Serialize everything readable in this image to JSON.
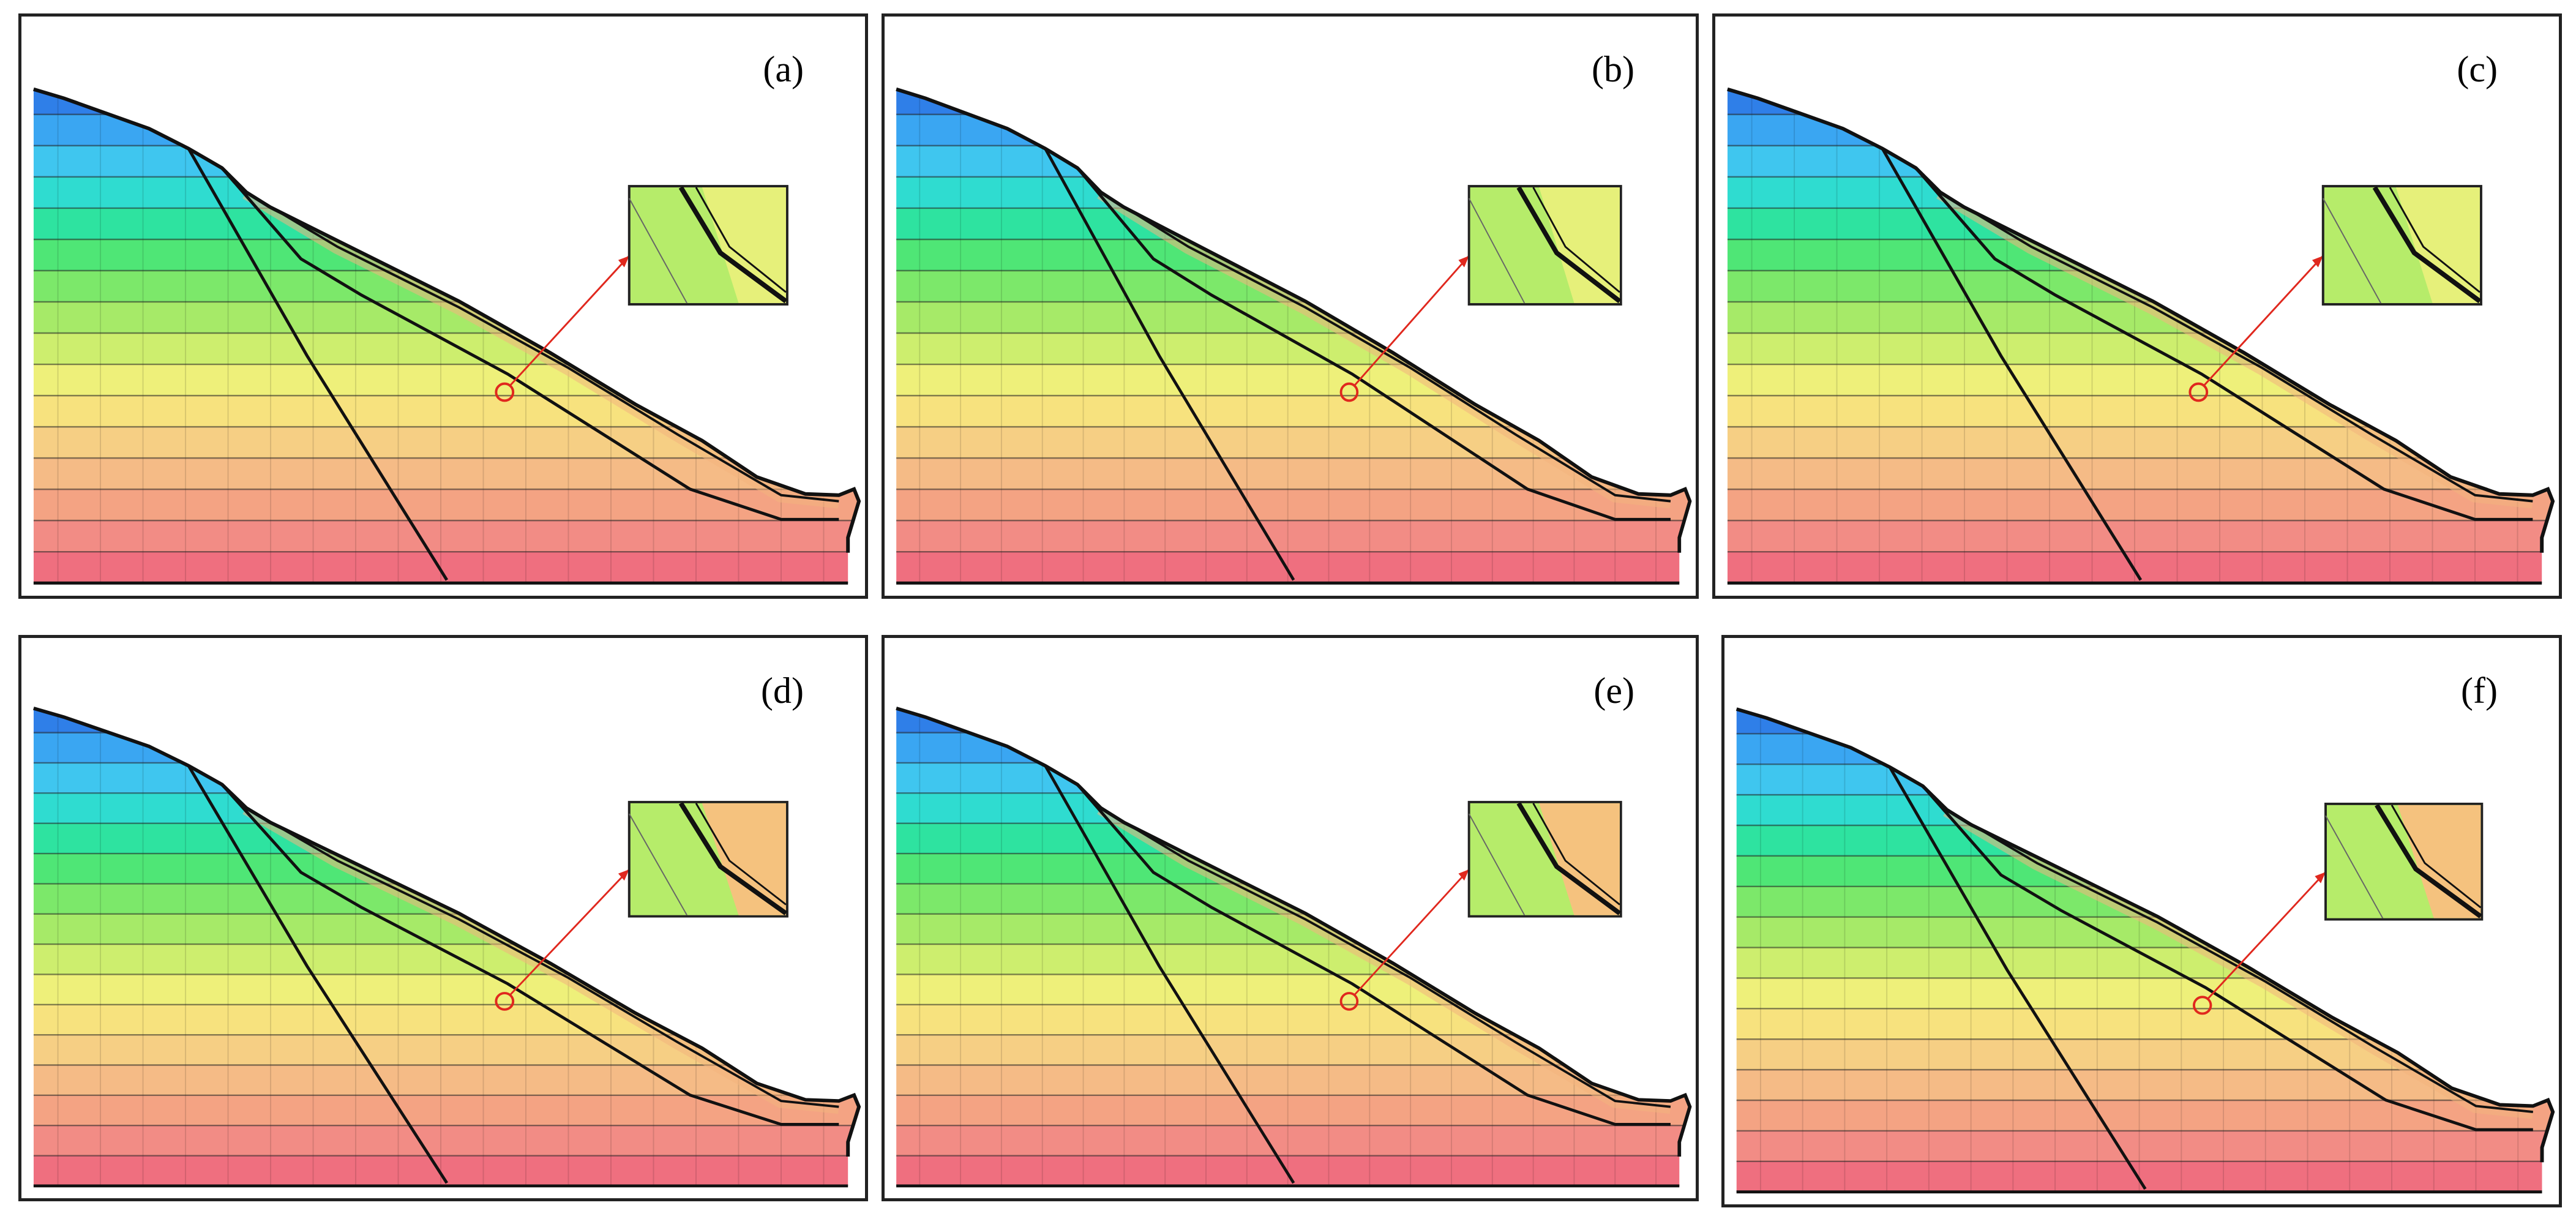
{
  "figure": {
    "panels": [
      {
        "id": "a",
        "label": "(a)"
      },
      {
        "id": "b",
        "label": "(b)"
      },
      {
        "id": "c",
        "label": "(c)"
      },
      {
        "id": "d",
        "label": "(d)"
      },
      {
        "id": "e",
        "label": "(e)"
      },
      {
        "id": "f",
        "label": "(f)"
      }
    ]
  },
  "colors": {
    "bands": [
      "#2f7fe8",
      "#3aa6f2",
      "#3fc6ef",
      "#2fdcd0",
      "#2ee3a0",
      "#4fe676",
      "#7ce86a",
      "#a6ea68",
      "#cdee6e",
      "#eef07a",
      "#f7e27e",
      "#f6cf84",
      "#f5bb86",
      "#f4a383",
      "#f28c85",
      "#ef6f7f"
    ],
    "outline": "#111111",
    "callout": "#e0281e"
  }
}
